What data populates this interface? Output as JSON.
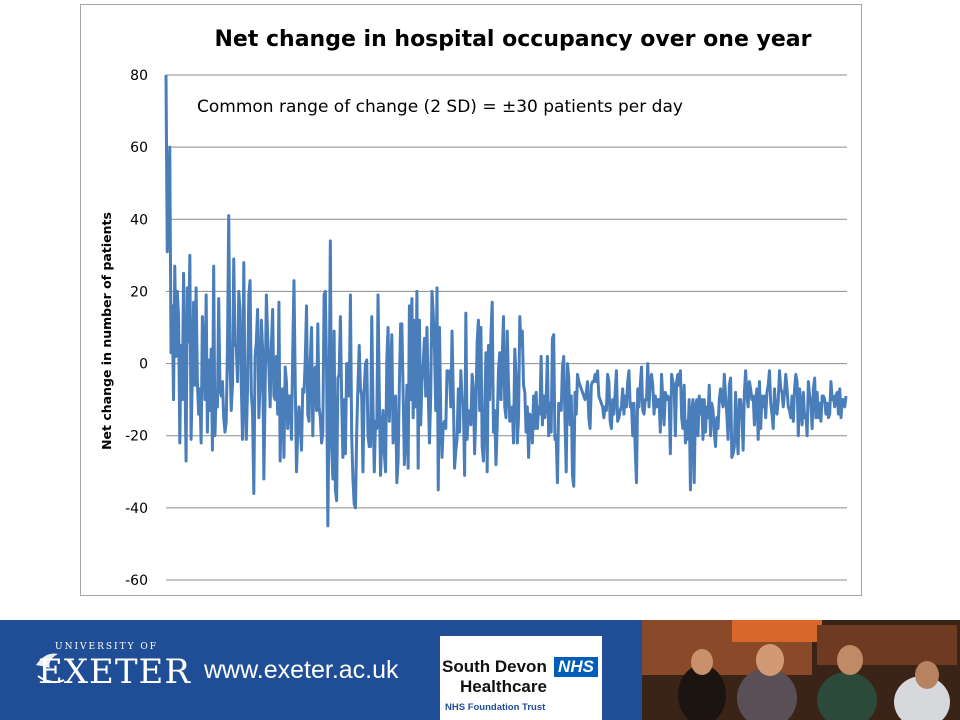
{
  "chart_data": {
    "type": "line",
    "title": "Net change in hospital occupancy over one year",
    "xlabel": "",
    "ylabel": "Net change in number of patients",
    "ylim": [
      -60,
      80
    ],
    "yticks": [
      "80",
      "60",
      "40",
      "20",
      "0",
      "-20",
      "-40",
      "-60"
    ],
    "grid": true,
    "legend": "none",
    "annotation": "Common range of change (2 SD)  = ±30 patients per day",
    "series": [
      {
        "color": "#4a7ebb",
        "values": [
          80,
          31,
          45,
          60,
          3,
          16,
          -10,
          27,
          2,
          20,
          13,
          -22,
          5,
          -10,
          25,
          -1,
          -27,
          21,
          6,
          30,
          -21,
          -3,
          17,
          -6,
          21,
          -5,
          -14,
          -7,
          -22,
          13,
          5,
          -10,
          19,
          -19,
          1,
          -13,
          4,
          -24,
          27,
          -20,
          -8,
          -12,
          18,
          -7,
          -9,
          -5,
          -15,
          -19,
          -16,
          5,
          41,
          0,
          -13,
          -6,
          29,
          5,
          5,
          -5,
          20,
          15,
          -6,
          -21,
          28,
          -10,
          -21,
          -7,
          19,
          23,
          -8,
          -14,
          -36,
          2,
          6,
          15,
          -15,
          -6,
          12,
          4,
          -32,
          -8,
          19,
          8,
          -1,
          -12,
          5,
          15,
          -9,
          -10,
          2,
          -14,
          17,
          -27,
          -8,
          -7,
          -26,
          -1,
          -5,
          -18,
          -9,
          -9,
          -21,
          3,
          23,
          -5,
          -30,
          -19,
          -12,
          -17,
          -24,
          -7,
          -8,
          1,
          16,
          -14,
          -16,
          1,
          10,
          -20,
          -2,
          -1,
          -13,
          11,
          -12,
          -15,
          -22,
          -19,
          19,
          20,
          -2,
          -45,
          -10,
          34,
          -23,
          -32,
          9,
          -35,
          -38,
          -4,
          -3,
          13,
          -10,
          -26,
          -10,
          -25,
          0,
          0,
          -9,
          19,
          -20,
          -32,
          -39,
          -40,
          -19,
          -6,
          5,
          -7,
          -9,
          -30,
          -7,
          0,
          1,
          -20,
          -23,
          -23,
          13,
          -12,
          -30,
          -16,
          -18,
          19,
          -8,
          -31,
          -20,
          -13,
          -25,
          -30,
          1,
          10,
          -16,
          -3,
          8,
          -22,
          -16,
          -9,
          -33,
          -27,
          -6,
          11,
          11,
          -8,
          -28,
          -20,
          -6,
          -29,
          16,
          -10,
          18,
          -15,
          12,
          -12,
          20,
          -29,
          12,
          -17,
          -5,
          0,
          7,
          -9,
          10,
          -8,
          -22,
          -9,
          20,
          14,
          4,
          -13,
          21,
          -35,
          10,
          -15,
          -26,
          -17,
          -16,
          -18,
          -2,
          -4,
          -2,
          -12,
          9,
          -9,
          -29,
          -24,
          -21,
          -7,
          -19,
          -2,
          -10,
          -11,
          -31,
          14,
          -21,
          -13,
          -15,
          -17,
          -3,
          -7,
          -25,
          -13,
          6,
          12,
          -13,
          10,
          -23,
          -27,
          -14,
          3,
          -30,
          5,
          -10,
          8,
          17,
          -19,
          -13,
          -28,
          -17,
          -2,
          3,
          -10,
          2,
          13,
          -12,
          -15,
          9,
          -6,
          -16,
          -14,
          -12,
          -22,
          4,
          -3,
          -22,
          -15,
          13,
          5,
          9,
          -6,
          -8,
          -19,
          -12,
          -26,
          -14,
          -15,
          -22,
          -9,
          -18,
          -8,
          -18,
          -12,
          -14,
          2,
          -17,
          -9,
          -15,
          -10,
          2,
          -20,
          -11,
          -19,
          7,
          8,
          -21,
          -20,
          -33,
          -11,
          -12,
          -13,
          -1,
          2,
          -16,
          -30,
          0,
          -4,
          -17,
          -9,
          -31,
          -34,
          -8,
          -14,
          -3,
          -5,
          -6,
          -7,
          -8,
          -9,
          -10,
          -8,
          -5,
          -15,
          -18,
          -6,
          -5,
          -5,
          -3,
          -5,
          -2,
          -9,
          -10,
          -11,
          -12,
          -15,
          -12,
          -13,
          -3,
          -5,
          -16,
          -18,
          -10,
          -14,
          -8,
          -2,
          -16,
          -15,
          -13,
          -12,
          -7,
          -14,
          -9,
          -12,
          -5,
          -2,
          -12,
          -11,
          -20,
          -11,
          -24,
          -33,
          -7,
          -12,
          -6,
          -1,
          -13,
          -14,
          -10,
          -10,
          0,
          -12,
          -5,
          -3,
          -6,
          -14,
          -9,
          -12,
          -10,
          -10,
          -19,
          -3,
          -10,
          -17,
          -8,
          -10,
          -9,
          -10,
          -25,
          -3,
          -5,
          -6,
          -20,
          -5,
          -3,
          -6,
          -2,
          -15,
          -18,
          -6,
          -22,
          -16,
          -21,
          -10,
          -35,
          -14,
          -10,
          -33,
          -12,
          -10,
          -20,
          -9,
          -14,
          -10,
          -21,
          -10,
          -19,
          -12,
          -15,
          -6,
          -20,
          -11,
          -13,
          -19,
          -23,
          -15,
          -18,
          -10,
          -7,
          -10,
          -12,
          -3,
          -9,
          -14,
          -21,
          -6,
          -4,
          -26,
          -25,
          -23,
          -8,
          -19,
          -25,
          -10,
          -10,
          -14,
          -24,
          -8,
          -2,
          -9,
          -12,
          -5,
          -7,
          -10,
          -9,
          -17,
          -10,
          -7,
          -21,
          -5,
          -18,
          -9,
          -12,
          -9,
          -15,
          -8,
          -6,
          -2,
          -11,
          -14,
          -18,
          -7,
          -13,
          -14,
          -10,
          -2,
          -7,
          -8,
          -12,
          -8,
          -3,
          -7,
          -12,
          -13,
          -15,
          -9,
          -16,
          -7,
          -3,
          -5,
          -20,
          -7,
          -12,
          -17,
          -8,
          -15,
          -14,
          -20,
          -5,
          -9,
          -11,
          -18,
          -7,
          -4,
          -15,
          -8,
          -15,
          -11,
          -16,
          -9,
          -9,
          -10,
          -14,
          -11,
          -15,
          -14,
          -5,
          -10,
          -9,
          -12,
          -9,
          -8,
          -14,
          -7,
          -15,
          -10,
          -10,
          -12,
          -9
        ]
      }
    ]
  },
  "footer": {
    "univ_label": "UNIVERSITY OF",
    "exeter_label": "EXETER",
    "url": "www.exeter.ac.uk",
    "sdh_line1": "South Devon",
    "sdh_line2": "Healthcare",
    "nhs_badge": "NHS",
    "sdh_line3": "NHS Foundation Trust",
    "bg_color": "#1f4e96"
  }
}
